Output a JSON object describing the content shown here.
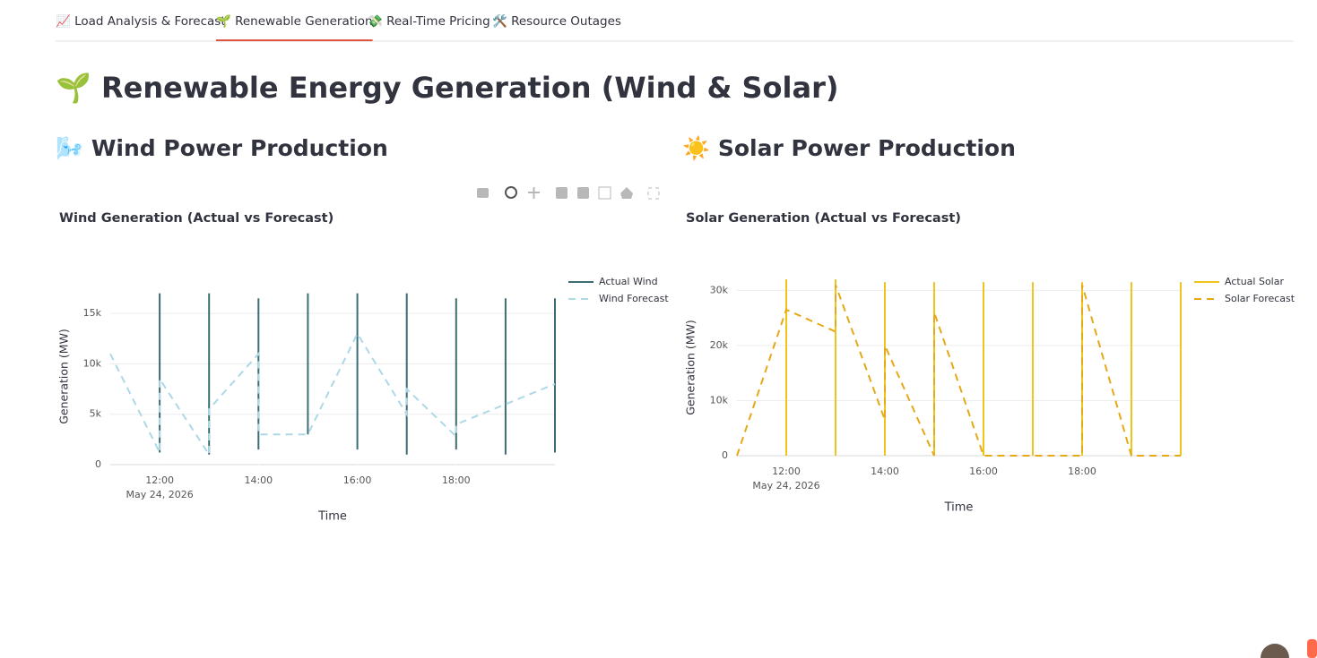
{
  "tabs": [
    "📈 Load Analysis & Forecast",
    "🌱 Renewable Generation",
    "💸 Real-Time Pricing",
    "🛠️ Resource Outages"
  ],
  "active_tab": 1,
  "title": "🌱 Renewable Energy Generation (Wind & Solar)",
  "sections": [
    "🌬️ Wind Power Production",
    "☀️ Solar Power Production"
  ],
  "chart_data": [
    {
      "type": "line",
      "title": "Wind Generation (Actual vs Forecast)",
      "x_label": "Time",
      "y_label": "Generation (MW)",
      "x_date_label": "May 24, 2026",
      "xlim": [
        11,
        20
      ],
      "xticks": [
        {
          "value": 12,
          "label": "12:00"
        },
        {
          "value": 14,
          "label": "14:00"
        },
        {
          "value": 16,
          "label": "16:00"
        },
        {
          "value": 18,
          "label": "18:00"
        }
      ],
      "ylim": [
        0,
        17500
      ],
      "yticks": [
        0,
        {
          "value": 5000,
          "label": "5k"
        },
        {
          "value": 10000,
          "label": "10k"
        },
        {
          "value": 15000,
          "label": "15k"
        }
      ],
      "grid": true,
      "legend": "top-right",
      "series": [
        {
          "name": "Actual Wind",
          "color": "#3d6d74",
          "dash": "solid",
          "x": [
            12,
            12,
            12,
            13,
            13,
            13,
            14,
            14,
            14,
            15,
            15,
            15,
            16,
            16,
            16,
            17,
            17,
            17,
            18,
            18,
            18,
            19,
            19,
            19,
            20,
            20
          ],
          "values": [
            1200,
            17000,
            null,
            1000,
            17000,
            null,
            1500,
            16500,
            null,
            3000,
            17000,
            null,
            1500,
            17000,
            null,
            1000,
            17000,
            null,
            1500,
            16500,
            null,
            1000,
            16500,
            null,
            1200,
            16500
          ]
        },
        {
          "name": "Wind Forecast",
          "color": "#add8e6",
          "dash": "dash",
          "x": [
            11,
            12,
            12,
            13,
            13,
            14,
            14,
            15,
            15,
            16,
            16,
            17,
            17,
            18,
            18,
            19,
            19,
            20
          ],
          "values": [
            11000,
            1200,
            8500,
            1000,
            5500,
            11000,
            3000,
            3000,
            3000,
            13000,
            13000,
            5000,
            7500,
            2800,
            4000,
            6000,
            6000,
            8000
          ]
        }
      ]
    },
    {
      "type": "line",
      "title": "Solar Generation (Actual vs Forecast)",
      "x_label": "Time",
      "y_label": "Generation (MW)",
      "x_date_label": "May 24, 2026",
      "xlim": [
        11,
        20
      ],
      "xticks": [
        {
          "value": 12,
          "label": "12:00"
        },
        {
          "value": 14,
          "label": "14:00"
        },
        {
          "value": 16,
          "label": "16:00"
        },
        {
          "value": 18,
          "label": "18:00"
        }
      ],
      "ylim": [
        0,
        32000
      ],
      "yticks": [
        0,
        {
          "value": 10000,
          "label": "10k"
        },
        {
          "value": 20000,
          "label": "20k"
        },
        {
          "value": 30000,
          "label": "30k"
        }
      ],
      "grid": true,
      "legend": "top-right",
      "series": [
        {
          "name": "Actual Solar",
          "color": "#f0c419",
          "dash": "solid",
          "x": [
            12,
            12,
            12,
            13,
            13,
            13,
            14,
            14,
            14,
            15,
            15,
            15,
            16,
            16,
            16,
            17,
            17,
            17,
            18,
            18,
            18,
            19,
            19,
            19,
            20,
            20
          ],
          "values": [
            0,
            32000,
            null,
            0,
            32000,
            null,
            0,
            31500,
            null,
            0,
            31500,
            null,
            0,
            31500,
            null,
            0,
            31500,
            null,
            0,
            31500,
            null,
            0,
            31500,
            null,
            0,
            31500
          ]
        },
        {
          "name": "Solar Forecast",
          "color": "#e6a817",
          "dash": "dash",
          "x": [
            11,
            12,
            13,
            13,
            14,
            14,
            15,
            15,
            16,
            17,
            18,
            18,
            19,
            20
          ],
          "values": [
            0,
            26500,
            22500,
            31000,
            6500,
            20000,
            0,
            26000,
            0,
            0,
            0,
            31000,
            0,
            0
          ]
        }
      ]
    }
  ]
}
